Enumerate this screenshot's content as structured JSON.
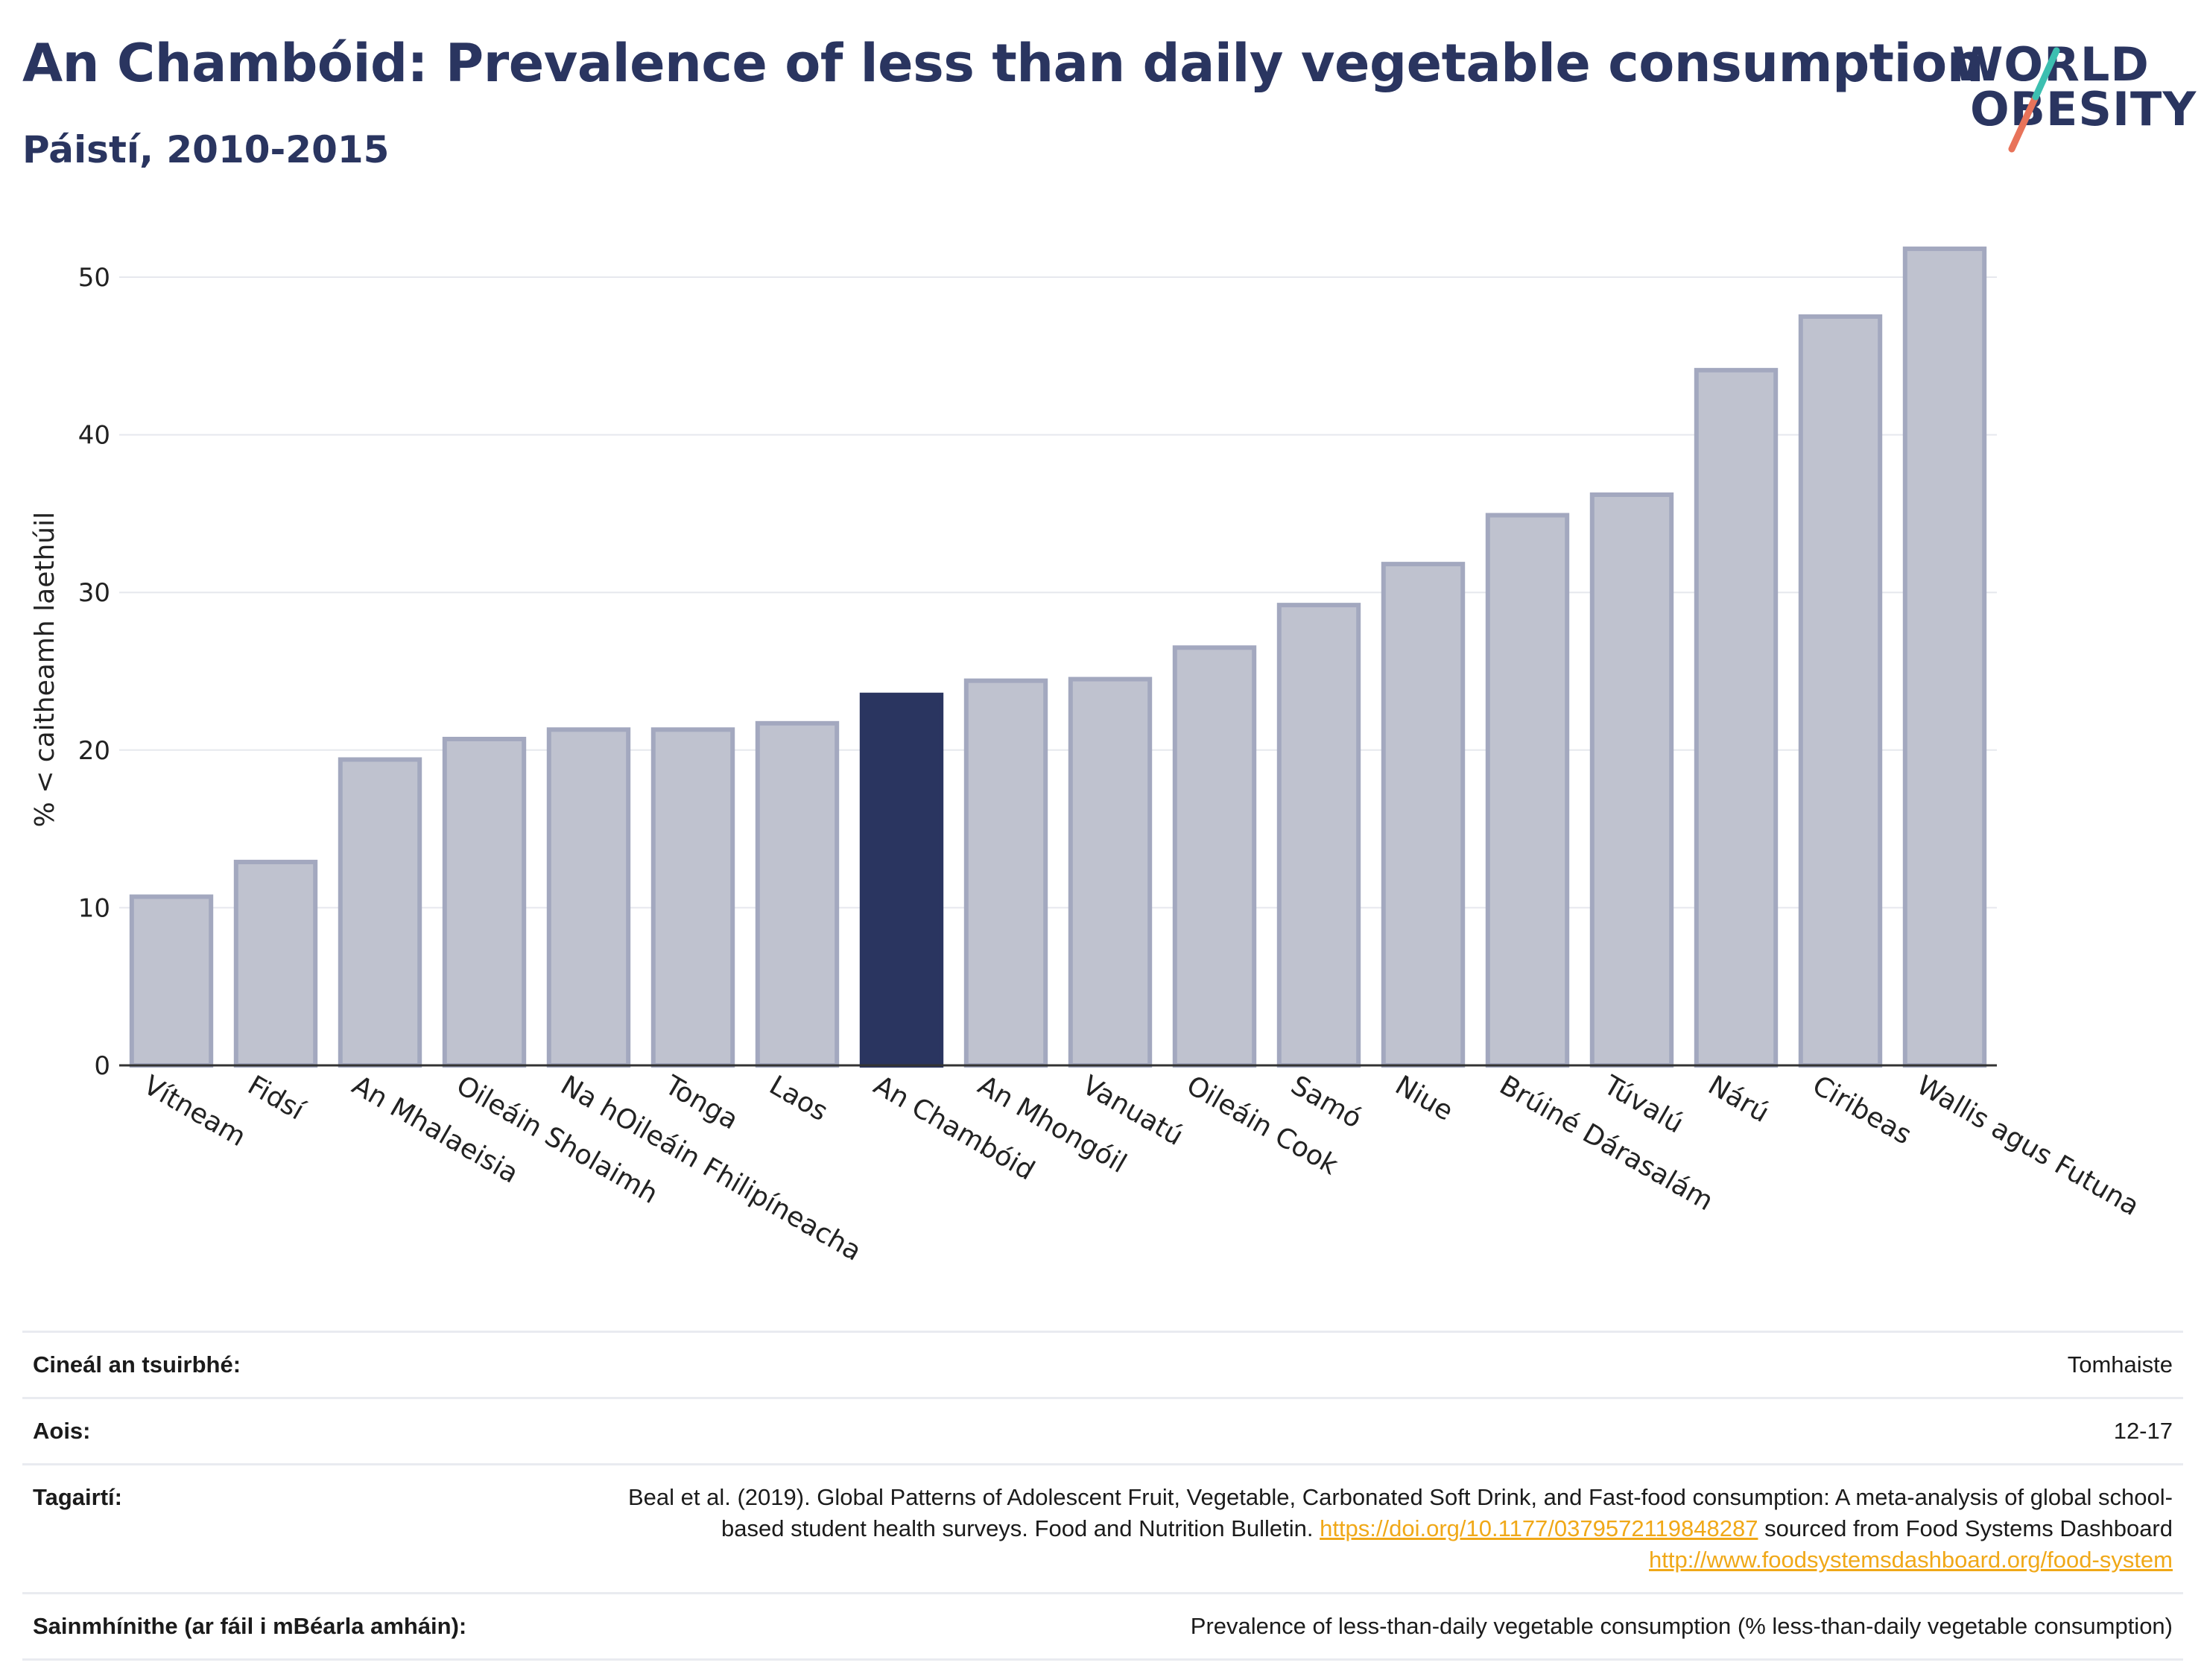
{
  "header": {
    "title": "An Chambóid: Prevalence of less than daily vegetable consumption",
    "subtitle": "Páistí, 2010-2015"
  },
  "logo": {
    "line1": "WORLD",
    "line2": "OBESITY",
    "icon": "world-obesity-logo"
  },
  "colors": {
    "highlight": "#2a3560",
    "bar": "#bfc2cf",
    "bar_stroke": "#a3a8bf",
    "grid": "#e6e8ee",
    "link": "#f0a818"
  },
  "chart_data": {
    "type": "bar",
    "ylabel": "% < caitheamh laethúil",
    "ylim": [
      0,
      54
    ],
    "yticks": [
      0,
      10,
      20,
      30,
      40,
      50
    ],
    "grid": true,
    "categories": [
      "Vítneam",
      "Fidsí",
      "An Mhalaeisia",
      "Oileáin Sholaimh",
      "Na hOileáin Fhilipíneacha",
      "Tonga",
      "Laos",
      "An Chambóid",
      "An Mhongóil",
      "Vanuatú",
      "Oileáin Cook",
      "Samó",
      "Niue",
      "Brúiné Dárasalám",
      "Túvalú",
      "Nárú",
      "Ciribeas",
      "Wallis agus Futuna"
    ],
    "values": [
      10.7,
      12.9,
      19.4,
      20.7,
      21.3,
      21.3,
      21.7,
      23.5,
      24.4,
      24.5,
      26.5,
      29.2,
      31.8,
      34.9,
      36.2,
      44.1,
      47.5,
      51.8
    ],
    "highlight": "An Chambóid"
  },
  "meta": [
    {
      "label": "Cineál an tsuirbhé:",
      "value": "Tomhaiste"
    },
    {
      "label": "Aois:",
      "value": "12-17"
    },
    {
      "label": "Tagairtí:",
      "text1": "Beal et al. (2019). Global Patterns of Adolescent Fruit, Vegetable, Carbonated Soft Drink, and Fast-food consumption: A meta-analysis of global school-based student health surveys. Food and Nutrition Bulletin.",
      "link1": "https://doi.org/10.1177/0379572119848287",
      "text2": "sourced from Food Systems Dashboard",
      "link2": "http://www.foodsystemsdashboard.org/food-system"
    },
    {
      "label": "Sainmhínithe (ar fáil i mBéarla amháin):",
      "value": "Prevalence of less-than-daily vegetable consumption (% less-than-daily vegetable consumption)"
    }
  ]
}
